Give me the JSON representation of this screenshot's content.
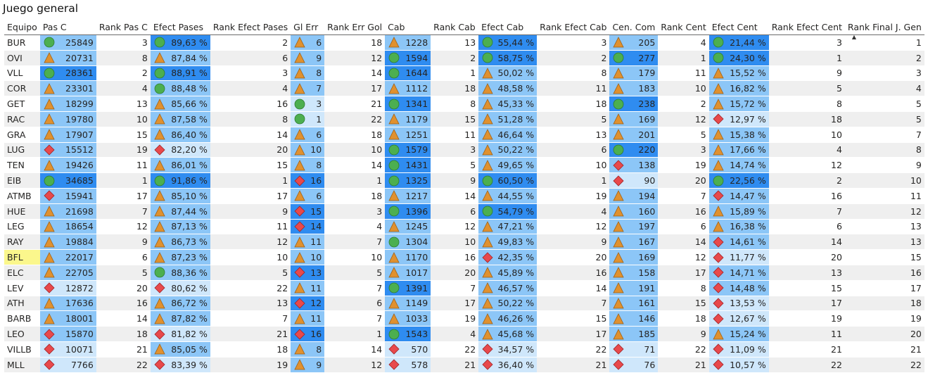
{
  "title": "Juego general",
  "columns": [
    "Equipo",
    "Pas C",
    "Rank Pas C",
    "Efect Pases",
    "Rank Efect Pases",
    "Gl Err",
    "Rank Err Gol",
    "Cab",
    "Rank Cab",
    "Efect Cab",
    "Rank Efect Cab",
    "Cen. Com",
    "Rank Cent",
    "Efect Cent",
    "Rank Efect Cent",
    "Rank Final J. Gen"
  ],
  "sort_indicator": "▲",
  "colors": {
    "bar_strong": "#2f8cf0",
    "bar_mid": "#8cc6f7",
    "bar_light": "#cfe7fb",
    "icon_green": "#4caf50",
    "icon_orange": "#e0912f",
    "icon_red": "#e8494c",
    "highlight": "#fbf78c"
  },
  "rows": [
    {
      "team": "BUR",
      "pas": "25849",
      "pas_icon": "circle",
      "r_pas": "3",
      "ef_pas": "89,63 %",
      "ef_pas_icon": "circle",
      "r_ef_pas": "2",
      "gl": "6",
      "gl_icon": "triangle",
      "r_gl": "18",
      "cab": "1228",
      "cab_icon": "triangle",
      "r_cab": "13",
      "ef_cab": "55,44 %",
      "ef_cab_icon": "circle",
      "r_ef_cab": "3",
      "cen": "205",
      "cen_icon": "triangle",
      "r_cen": "4",
      "ef_cen": "21,44 %",
      "ef_cen_icon": "circle",
      "r_ef_cen": "3",
      "r_final": "1"
    },
    {
      "team": "OVI",
      "pas": "20731",
      "pas_icon": "triangle",
      "r_pas": "8",
      "ef_pas": "87,84 %",
      "ef_pas_icon": "triangle",
      "r_ef_pas": "6",
      "gl": "9",
      "gl_icon": "triangle",
      "r_gl": "12",
      "cab": "1594",
      "cab_icon": "circle",
      "r_cab": "2",
      "ef_cab": "58,75 %",
      "ef_cab_icon": "circle",
      "r_ef_cab": "2",
      "cen": "277",
      "cen_icon": "circle",
      "r_cen": "1",
      "ef_cen": "24,30 %",
      "ef_cen_icon": "circle",
      "r_ef_cen": "1",
      "r_final": "2"
    },
    {
      "team": "VLL",
      "pas": "28361",
      "pas_icon": "circle",
      "r_pas": "2",
      "ef_pas": "88,91 %",
      "ef_pas_icon": "circle",
      "r_ef_pas": "3",
      "gl": "8",
      "gl_icon": "triangle",
      "r_gl": "14",
      "cab": "1644",
      "cab_icon": "circle",
      "r_cab": "1",
      "ef_cab": "50,02 %",
      "ef_cab_icon": "triangle",
      "r_ef_cab": "8",
      "cen": "179",
      "cen_icon": "triangle",
      "r_cen": "11",
      "ef_cen": "15,52 %",
      "ef_cen_icon": "triangle",
      "r_ef_cen": "9",
      "r_final": "3"
    },
    {
      "team": "COR",
      "pas": "23301",
      "pas_icon": "triangle",
      "r_pas": "4",
      "ef_pas": "88,48 %",
      "ef_pas_icon": "circle",
      "r_ef_pas": "4",
      "gl": "7",
      "gl_icon": "triangle",
      "r_gl": "17",
      "cab": "1112",
      "cab_icon": "triangle",
      "r_cab": "18",
      "ef_cab": "48,58 %",
      "ef_cab_icon": "triangle",
      "r_ef_cab": "11",
      "cen": "183",
      "cen_icon": "triangle",
      "r_cen": "10",
      "ef_cen": "16,82 %",
      "ef_cen_icon": "triangle",
      "r_ef_cen": "5",
      "r_final": "4"
    },
    {
      "team": "GET",
      "pas": "18299",
      "pas_icon": "triangle",
      "r_pas": "13",
      "ef_pas": "85,66 %",
      "ef_pas_icon": "triangle",
      "r_ef_pas": "16",
      "gl": "3",
      "gl_icon": "circle",
      "r_gl": "21",
      "cab": "1341",
      "cab_icon": "circle",
      "r_cab": "8",
      "ef_cab": "45,33 %",
      "ef_cab_icon": "triangle",
      "r_ef_cab": "18",
      "cen": "238",
      "cen_icon": "circle",
      "r_cen": "2",
      "ef_cen": "15,72 %",
      "ef_cen_icon": "triangle",
      "r_ef_cen": "8",
      "r_final": "5"
    },
    {
      "team": "RAC",
      "pas": "19780",
      "pas_icon": "triangle",
      "r_pas": "10",
      "ef_pas": "87,58 %",
      "ef_pas_icon": "triangle",
      "r_ef_pas": "8",
      "gl": "1",
      "gl_icon": "circle",
      "r_gl": "22",
      "cab": "1179",
      "cab_icon": "triangle",
      "r_cab": "15",
      "ef_cab": "51,28 %",
      "ef_cab_icon": "triangle",
      "r_ef_cab": "5",
      "cen": "169",
      "cen_icon": "triangle",
      "r_cen": "12",
      "ef_cen": "12,97 %",
      "ef_cen_icon": "diamond",
      "r_ef_cen": "18",
      "r_final": "5"
    },
    {
      "team": "GRA",
      "pas": "17907",
      "pas_icon": "triangle",
      "r_pas": "15",
      "ef_pas": "86,40 %",
      "ef_pas_icon": "triangle",
      "r_ef_pas": "14",
      "gl": "6",
      "gl_icon": "triangle",
      "r_gl": "18",
      "cab": "1251",
      "cab_icon": "triangle",
      "r_cab": "11",
      "ef_cab": "46,64 %",
      "ef_cab_icon": "triangle",
      "r_ef_cab": "13",
      "cen": "201",
      "cen_icon": "triangle",
      "r_cen": "5",
      "ef_cen": "15,38 %",
      "ef_cen_icon": "triangle",
      "r_ef_cen": "10",
      "r_final": "7"
    },
    {
      "team": "LUG",
      "pas": "15512",
      "pas_icon": "diamond",
      "r_pas": "19",
      "ef_pas": "82,20 %",
      "ef_pas_icon": "diamond",
      "r_ef_pas": "20",
      "gl": "10",
      "gl_icon": "triangle",
      "r_gl": "10",
      "cab": "1579",
      "cab_icon": "circle",
      "r_cab": "3",
      "ef_cab": "50,22 %",
      "ef_cab_icon": "triangle",
      "r_ef_cab": "6",
      "cen": "220",
      "cen_icon": "circle",
      "r_cen": "3",
      "ef_cen": "17,66 %",
      "ef_cen_icon": "triangle",
      "r_ef_cen": "4",
      "r_final": "8"
    },
    {
      "team": "TEN",
      "pas": "19426",
      "pas_icon": "triangle",
      "r_pas": "11",
      "ef_pas": "86,01 %",
      "ef_pas_icon": "triangle",
      "r_ef_pas": "15",
      "gl": "8",
      "gl_icon": "triangle",
      "r_gl": "14",
      "cab": "1431",
      "cab_icon": "circle",
      "r_cab": "5",
      "ef_cab": "49,65 %",
      "ef_cab_icon": "triangle",
      "r_ef_cab": "10",
      "cen": "138",
      "cen_icon": "diamond",
      "r_cen": "19",
      "ef_cen": "14,74 %",
      "ef_cen_icon": "triangle",
      "r_ef_cen": "12",
      "r_final": "9"
    },
    {
      "team": "EIB",
      "pas": "34685",
      "pas_icon": "circle",
      "r_pas": "1",
      "ef_pas": "91,86 %",
      "ef_pas_icon": "circle",
      "r_ef_pas": "1",
      "gl": "16",
      "gl_icon": "diamond",
      "r_gl": "1",
      "cab": "1325",
      "cab_icon": "circle",
      "r_cab": "9",
      "ef_cab": "60,50 %",
      "ef_cab_icon": "circle",
      "r_ef_cab": "1",
      "cen": "90",
      "cen_icon": "diamond",
      "r_cen": "20",
      "ef_cen": "22,56 %",
      "ef_cen_icon": "circle",
      "r_ef_cen": "2",
      "r_final": "10"
    },
    {
      "team": "ATMB",
      "pas": "15941",
      "pas_icon": "diamond",
      "r_pas": "17",
      "ef_pas": "85,10 %",
      "ef_pas_icon": "triangle",
      "r_ef_pas": "17",
      "gl": "6",
      "gl_icon": "triangle",
      "r_gl": "18",
      "cab": "1217",
      "cab_icon": "triangle",
      "r_cab": "14",
      "ef_cab": "44,55 %",
      "ef_cab_icon": "triangle",
      "r_ef_cab": "19",
      "cen": "194",
      "cen_icon": "triangle",
      "r_cen": "7",
      "ef_cen": "14,47 %",
      "ef_cen_icon": "diamond",
      "r_ef_cen": "16",
      "r_final": "11"
    },
    {
      "team": "HUE",
      "pas": "21698",
      "pas_icon": "triangle",
      "r_pas": "7",
      "ef_pas": "87,44 %",
      "ef_pas_icon": "triangle",
      "r_ef_pas": "9",
      "gl": "15",
      "gl_icon": "diamond",
      "r_gl": "3",
      "cab": "1396",
      "cab_icon": "circle",
      "r_cab": "6",
      "ef_cab": "54,79 %",
      "ef_cab_icon": "circle",
      "r_ef_cab": "4",
      "cen": "160",
      "cen_icon": "triangle",
      "r_cen": "16",
      "ef_cen": "15,89 %",
      "ef_cen_icon": "triangle",
      "r_ef_cen": "7",
      "r_final": "12"
    },
    {
      "team": "LEG",
      "pas": "18654",
      "pas_icon": "triangle",
      "r_pas": "12",
      "ef_pas": "87,13 %",
      "ef_pas_icon": "triangle",
      "r_ef_pas": "11",
      "gl": "14",
      "gl_icon": "diamond",
      "r_gl": "4",
      "cab": "1245",
      "cab_icon": "triangle",
      "r_cab": "12",
      "ef_cab": "47,21 %",
      "ef_cab_icon": "triangle",
      "r_ef_cab": "12",
      "cen": "197",
      "cen_icon": "triangle",
      "r_cen": "6",
      "ef_cen": "16,38 %",
      "ef_cen_icon": "triangle",
      "r_ef_cen": "6",
      "r_final": "13"
    },
    {
      "team": "RAY",
      "pas": "19884",
      "pas_icon": "triangle",
      "r_pas": "9",
      "ef_pas": "86,73 %",
      "ef_pas_icon": "triangle",
      "r_ef_pas": "12",
      "gl": "11",
      "gl_icon": "triangle",
      "r_gl": "7",
      "cab": "1304",
      "cab_icon": "circle",
      "r_cab": "10",
      "ef_cab": "49,83 %",
      "ef_cab_icon": "triangle",
      "r_ef_cab": "9",
      "cen": "167",
      "cen_icon": "triangle",
      "r_cen": "14",
      "ef_cen": "14,61 %",
      "ef_cen_icon": "diamond",
      "r_ef_cen": "14",
      "r_final": "13"
    },
    {
      "team": "BFL",
      "pas": "22017",
      "pas_icon": "triangle",
      "r_pas": "6",
      "ef_pas": "87,23 %",
      "ef_pas_icon": "triangle",
      "r_ef_pas": "10",
      "gl": "10",
      "gl_icon": "triangle",
      "r_gl": "10",
      "cab": "1170",
      "cab_icon": "triangle",
      "r_cab": "16",
      "ef_cab": "42,35 %",
      "ef_cab_icon": "diamond",
      "r_ef_cab": "20",
      "cen": "169",
      "cen_icon": "triangle",
      "r_cen": "12",
      "ef_cen": "11,77 %",
      "ef_cen_icon": "diamond",
      "r_ef_cen": "20",
      "r_final": "15",
      "highlight": true
    },
    {
      "team": "ELC",
      "pas": "22705",
      "pas_icon": "triangle",
      "r_pas": "5",
      "ef_pas": "88,36 %",
      "ef_pas_icon": "circle",
      "r_ef_pas": "5",
      "gl": "13",
      "gl_icon": "diamond",
      "r_gl": "5",
      "cab": "1017",
      "cab_icon": "triangle",
      "r_cab": "20",
      "ef_cab": "45,89 %",
      "ef_cab_icon": "triangle",
      "r_ef_cab": "16",
      "cen": "158",
      "cen_icon": "triangle",
      "r_cen": "17",
      "ef_cen": "14,71 %",
      "ef_cen_icon": "diamond",
      "r_ef_cen": "13",
      "r_final": "16"
    },
    {
      "team": "LEV",
      "pas": "12872",
      "pas_icon": "diamond",
      "r_pas": "20",
      "ef_pas": "80,62 %",
      "ef_pas_icon": "diamond",
      "r_ef_pas": "22",
      "gl": "11",
      "gl_icon": "triangle",
      "r_gl": "7",
      "cab": "1391",
      "cab_icon": "circle",
      "r_cab": "7",
      "ef_cab": "46,57 %",
      "ef_cab_icon": "triangle",
      "r_ef_cab": "14",
      "cen": "191",
      "cen_icon": "triangle",
      "r_cen": "8",
      "ef_cen": "14,48 %",
      "ef_cen_icon": "diamond",
      "r_ef_cen": "15",
      "r_final": "17"
    },
    {
      "team": "ATH",
      "pas": "17636",
      "pas_icon": "triangle",
      "r_pas": "16",
      "ef_pas": "86,72 %",
      "ef_pas_icon": "triangle",
      "r_ef_pas": "13",
      "gl": "12",
      "gl_icon": "diamond",
      "r_gl": "6",
      "cab": "1149",
      "cab_icon": "triangle",
      "r_cab": "17",
      "ef_cab": "50,22 %",
      "ef_cab_icon": "triangle",
      "r_ef_cab": "7",
      "cen": "161",
      "cen_icon": "triangle",
      "r_cen": "15",
      "ef_cen": "13,53 %",
      "ef_cen_icon": "diamond",
      "r_ef_cen": "17",
      "r_final": "18"
    },
    {
      "team": "BARB",
      "pas": "18001",
      "pas_icon": "triangle",
      "r_pas": "14",
      "ef_pas": "87,82 %",
      "ef_pas_icon": "triangle",
      "r_ef_pas": "7",
      "gl": "11",
      "gl_icon": "triangle",
      "r_gl": "7",
      "cab": "1033",
      "cab_icon": "triangle",
      "r_cab": "19",
      "ef_cab": "46,26 %",
      "ef_cab_icon": "triangle",
      "r_ef_cab": "15",
      "cen": "146",
      "cen_icon": "triangle",
      "r_cen": "18",
      "ef_cen": "12,67 %",
      "ef_cen_icon": "diamond",
      "r_ef_cen": "19",
      "r_final": "19"
    },
    {
      "team": "LEO",
      "pas": "15870",
      "pas_icon": "diamond",
      "r_pas": "18",
      "ef_pas": "81,82 %",
      "ef_pas_icon": "diamond",
      "r_ef_pas": "21",
      "gl": "16",
      "gl_icon": "diamond",
      "r_gl": "1",
      "cab": "1543",
      "cab_icon": "circle",
      "r_cab": "4",
      "ef_cab": "45,68 %",
      "ef_cab_icon": "triangle",
      "r_ef_cab": "17",
      "cen": "185",
      "cen_icon": "triangle",
      "r_cen": "9",
      "ef_cen": "15,24 %",
      "ef_cen_icon": "triangle",
      "r_ef_cen": "11",
      "r_final": "20"
    },
    {
      "team": "VILLB",
      "pas": "10071",
      "pas_icon": "diamond",
      "r_pas": "21",
      "ef_pas": "85,05 %",
      "ef_pas_icon": "triangle",
      "r_ef_pas": "18",
      "gl": "8",
      "gl_icon": "triangle",
      "r_gl": "14",
      "cab": "570",
      "cab_icon": "diamond",
      "r_cab": "22",
      "ef_cab": "34,57 %",
      "ef_cab_icon": "diamond",
      "r_ef_cab": "22",
      "cen": "71",
      "cen_icon": "diamond",
      "r_cen": "22",
      "ef_cen": "11,09 %",
      "ef_cen_icon": "diamond",
      "r_ef_cen": "21",
      "r_final": "21"
    },
    {
      "team": "MLL",
      "pas": "7766",
      "pas_icon": "diamond",
      "r_pas": "22",
      "ef_pas": "83,39 %",
      "ef_pas_icon": "diamond",
      "r_ef_pas": "19",
      "gl": "9",
      "gl_icon": "triangle",
      "r_gl": "12",
      "cab": "578",
      "cab_icon": "diamond",
      "r_cab": "21",
      "ef_cab": "36,40 %",
      "ef_cab_icon": "diamond",
      "r_ef_cab": "21",
      "cen": "76",
      "cen_icon": "diamond",
      "r_cen": "21",
      "ef_cen": "10,57 %",
      "ef_cen_icon": "diamond",
      "r_ef_cen": "22",
      "r_final": "22"
    }
  ]
}
